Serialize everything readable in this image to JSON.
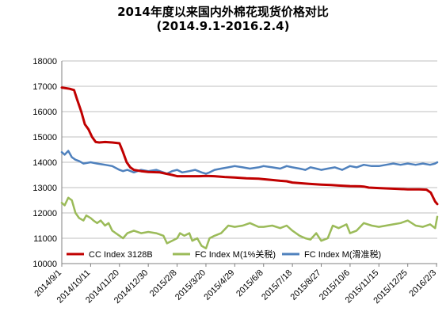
{
  "chart_data": {
    "type": "line",
    "title": "2014年度以来国内外棉花现货价格对比",
    "subtitle": "(2014.9.1-2016.2.4)",
    "xlabel": "",
    "ylabel": "",
    "ylim": [
      10000,
      18000
    ],
    "yticks": [
      "10000",
      "11000",
      "12000",
      "13000",
      "14000",
      "15000",
      "16000",
      "17000",
      "18000"
    ],
    "xticks": [
      "2014/9/1",
      "2014/10/11",
      "2014/11/20",
      "2014/12/30",
      "2015/2/8",
      "2015/3/20",
      "2015/4/29",
      "2015/6/8",
      "2015/7/18",
      "2015/8/27",
      "2015/10/6",
      "2015/11/15",
      "2015/12/25",
      "2016/2/3"
    ],
    "xlim": [
      "2014/9/1",
      "2016/2/4"
    ],
    "grid": "horizontal",
    "legend_position": "bottom",
    "series": [
      {
        "name": "CC Index 3128B",
        "color": "#c00000",
        "x": [
          "2014/9/1",
          "2014/9/12",
          "2014/9/18",
          "2014/9/22",
          "2014/9/28",
          "2014/10/3",
          "2014/10/8",
          "2014/10/13",
          "2014/10/18",
          "2014/10/23",
          "2014/10/31",
          "2014/11/10",
          "2014/11/20",
          "2014/11/25",
          "2014/11/30",
          "2014/12/5",
          "2014/12/10",
          "2014/12/20",
          "2014/12/30",
          "2015/1/15",
          "2015/2/1",
          "2015/2/8",
          "2015/2/20",
          "2015/3/1",
          "2015/3/10",
          "2015/3/20",
          "2015/4/1",
          "2015/4/15",
          "2015/4/29",
          "2015/5/15",
          "2015/6/1",
          "2015/6/8",
          "2015/6/20",
          "2015/7/1",
          "2015/7/10",
          "2015/7/18",
          "2015/8/1",
          "2015/8/10",
          "2015/8/27",
          "2015/9/10",
          "2015/9/20",
          "2015/10/6",
          "2015/10/20",
          "2015/10/25",
          "2015/11/1",
          "2015/11/15",
          "2015/12/1",
          "2015/12/10",
          "2015/12/25",
          "2016/1/10",
          "2016/1/20",
          "2016/1/26",
          "2016/2/1",
          "2016/2/4"
        ],
        "values": [
          16950,
          16900,
          16850,
          16500,
          16000,
          15500,
          15300,
          15000,
          14800,
          14780,
          14800,
          14780,
          14750,
          14400,
          14000,
          13800,
          13700,
          13650,
          13620,
          13600,
          13500,
          13450,
          13450,
          13450,
          13450,
          13460,
          13450,
          13420,
          13400,
          13370,
          13350,
          13330,
          13300,
          13270,
          13250,
          13200,
          13170,
          13150,
          13120,
          13100,
          13080,
          13060,
          13050,
          13040,
          13000,
          12980,
          12960,
          12950,
          12930,
          12930,
          12920,
          12800,
          12450,
          12350
        ]
      },
      {
        "name": "FC Index M(1%关税)",
        "color": "#9bbb59",
        "x": [
          "2014/9/1",
          "2014/9/5",
          "2014/9/10",
          "2014/9/15",
          "2014/9/20",
          "2014/9/25",
          "2014/10/1",
          "2014/10/5",
          "2014/10/11",
          "2014/10/15",
          "2014/10/20",
          "2014/10/25",
          "2014/10/31",
          "2014/11/5",
          "2014/11/10",
          "2014/11/15",
          "2014/11/20",
          "2014/11/25",
          "2014/12/1",
          "2014/12/10",
          "2014/12/20",
          "2014/12/30",
          "2015/1/10",
          "2015/1/20",
          "2015/1/25",
          "2015/2/1",
          "2015/2/8",
          "2015/2/12",
          "2015/2/18",
          "2015/2/25",
          "2015/3/1",
          "2015/3/8",
          "2015/3/14",
          "2015/3/20",
          "2015/3/25",
          "2015/4/1",
          "2015/4/10",
          "2015/4/20",
          "2015/4/29",
          "2015/5/10",
          "2015/5/20",
          "2015/6/1",
          "2015/6/8",
          "2015/6/20",
          "2015/7/1",
          "2015/7/10",
          "2015/7/18",
          "2015/7/28",
          "2015/8/5",
          "2015/8/12",
          "2015/8/20",
          "2015/8/27",
          "2015/9/5",
          "2015/9/12",
          "2015/9/20",
          "2015/10/1",
          "2015/10/6",
          "2015/10/15",
          "2015/10/25",
          "2015/11/5",
          "2015/11/15",
          "2015/11/25",
          "2015/12/5",
          "2015/12/15",
          "2015/12/25",
          "2016/1/5",
          "2016/1/15",
          "2016/1/25",
          "2016/2/1",
          "2016/2/4"
        ],
        "values": [
          12400,
          12300,
          12600,
          12500,
          12000,
          11800,
          11700,
          11900,
          11800,
          11700,
          11600,
          11700,
          11500,
          11600,
          11300,
          11200,
          11100,
          11000,
          11200,
          11300,
          11200,
          11250,
          11200,
          11100,
          10800,
          10900,
          11000,
          11200,
          11100,
          11200,
          10900,
          11000,
          10700,
          10600,
          11000,
          11100,
          11200,
          11500,
          11450,
          11500,
          11600,
          11450,
          11450,
          11500,
          11400,
          11500,
          11300,
          11100,
          11000,
          10950,
          11200,
          10900,
          11000,
          11500,
          11400,
          11550,
          11200,
          11300,
          11600,
          11500,
          11450,
          11500,
          11550,
          11600,
          11700,
          11500,
          11450,
          11550,
          11400,
          11850
        ]
      },
      {
        "name": "FC Index M(滑准税)",
        "color": "#4f81bd",
        "x": [
          "2014/9/1",
          "2014/9/5",
          "2014/9/10",
          "2014/9/15",
          "2014/9/20",
          "2014/9/25",
          "2014/10/1",
          "2014/10/11",
          "2014/10/20",
          "2014/10/31",
          "2014/11/10",
          "2014/11/20",
          "2014/11/25",
          "2014/12/1",
          "2014/12/10",
          "2014/12/20",
          "2014/12/30",
          "2015/1/10",
          "2015/1/20",
          "2015/1/25",
          "2015/2/1",
          "2015/2/8",
          "2015/2/15",
          "2015/2/25",
          "2015/3/5",
          "2015/3/14",
          "2015/3/20",
          "2015/3/25",
          "2015/4/1",
          "2015/4/10",
          "2015/4/20",
          "2015/4/29",
          "2015/5/10",
          "2015/5/20",
          "2015/6/1",
          "2015/6/8",
          "2015/6/20",
          "2015/7/1",
          "2015/7/10",
          "2015/7/18",
          "2015/7/28",
          "2015/8/5",
          "2015/8/12",
          "2015/8/20",
          "2015/8/27",
          "2015/9/5",
          "2015/9/15",
          "2015/9/25",
          "2015/10/6",
          "2015/10/15",
          "2015/10/25",
          "2015/11/5",
          "2015/11/15",
          "2015/11/25",
          "2015/12/5",
          "2015/12/15",
          "2015/12/25",
          "2016/1/5",
          "2016/1/15",
          "2016/1/25",
          "2016/2/1",
          "2016/2/4"
        ],
        "values": [
          14400,
          14300,
          14450,
          14200,
          14100,
          14050,
          13950,
          14000,
          13950,
          13900,
          13850,
          13700,
          13650,
          13700,
          13600,
          13700,
          13650,
          13700,
          13600,
          13550,
          13650,
          13700,
          13600,
          13650,
          13700,
          13600,
          13550,
          13600,
          13700,
          13750,
          13800,
          13850,
          13800,
          13750,
          13800,
          13850,
          13800,
          13750,
          13850,
          13800,
          13750,
          13700,
          13800,
          13750,
          13700,
          13750,
          13800,
          13700,
          13850,
          13800,
          13900,
          13850,
          13850,
          13900,
          13950,
          13900,
          13950,
          13900,
          13950,
          13900,
          13950,
          14000
        ]
      }
    ]
  }
}
